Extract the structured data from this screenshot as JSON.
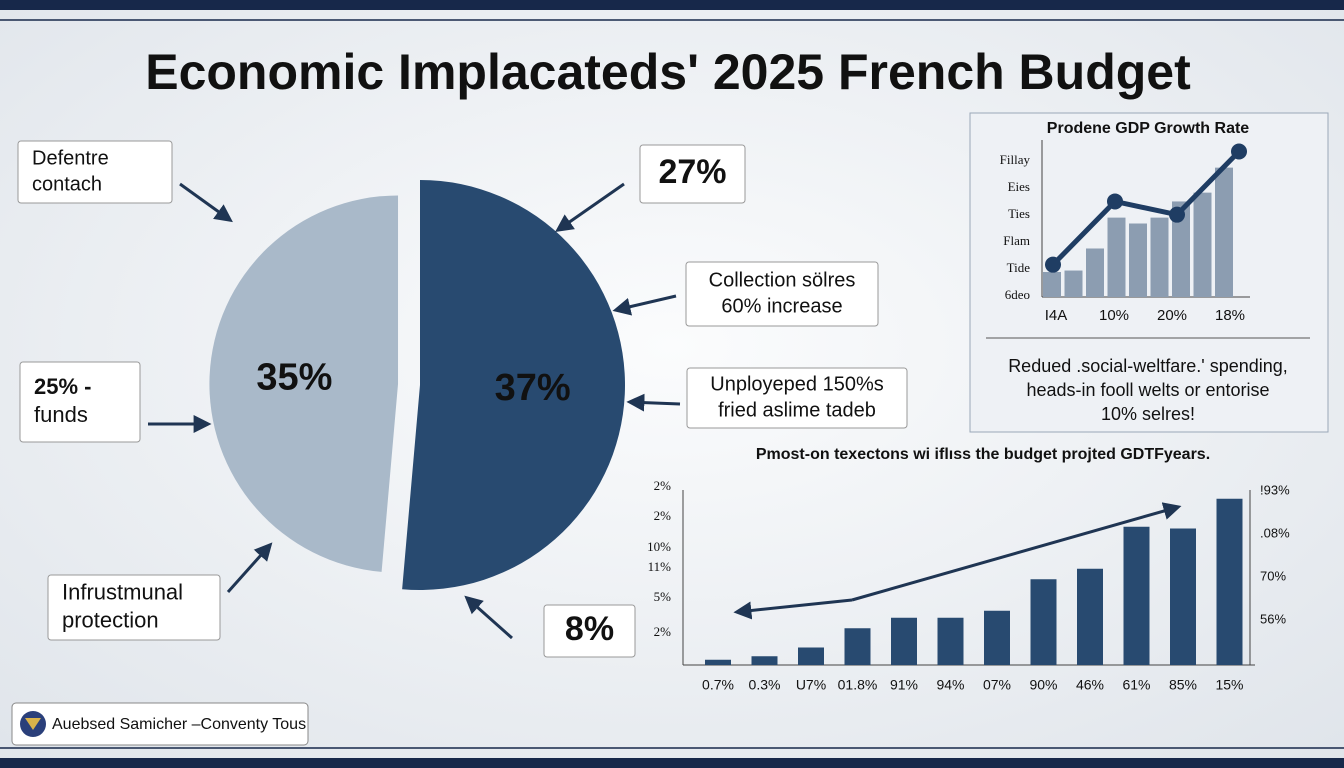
{
  "title": "Economic Implacateds' 2025 French Budget",
  "callouts": [
    {
      "text": [
        "Defentre",
        "contach"
      ]
    },
    {
      "text": [
        "27%"
      ]
    },
    {
      "text": [
        "Collection sölres",
        "60% increase"
      ]
    },
    {
      "text": [
        "Unployeped 150%s",
        "fried aslime tadeb"
      ]
    },
    {
      "text": [
        "25% -",
        "funds"
      ]
    },
    {
      "text": [
        "Infrustmunal",
        "protection"
      ]
    },
    {
      "text": [
        "8%"
      ]
    }
  ],
  "note": [
    "Redued .social-weltfare.' spending,",
    "heads-in fooll welts or entorise",
    "10% selres!"
  ],
  "footer": "Auebsed Samicher –Conventy Tous",
  "chart_data": [
    {
      "type": "pie",
      "values": [
        37,
        35
      ],
      "value_labels": [
        "37%",
        "35%"
      ],
      "colors": [
        "#284a70",
        "#a9b9c9"
      ]
    },
    {
      "type": "combo",
      "title": "Prodene GDP Growth Rate",
      "y_labels": [
        "Fillay",
        "Eies",
        "Ties",
        "Flam",
        "Tide",
        "6deo"
      ],
      "x_labels": [
        "I4A",
        "10%",
        "20%",
        "18%"
      ],
      "ylim": [
        0,
        100
      ],
      "series": [
        {
          "kind": "bar",
          "color": "#8c9db1",
          "values": [
            17,
            18,
            33,
            54,
            50,
            54,
            65,
            71,
            88
          ]
        },
        {
          "kind": "line",
          "color": "#1f3d63",
          "values": [
            22,
            65,
            56,
            99
          ]
        }
      ]
    },
    {
      "type": "bar",
      "title": "Pmost-on texectons wi iflıss the budget projted GDTFyears.",
      "y_labels": [
        "2%",
        "2%",
        "10%",
        "11%",
        "5%",
        "2%"
      ],
      "y2_labels": [
        "!93%",
        ".08%",
        "70%",
        "56%"
      ],
      "categories": [
        "0.7%",
        "0.3%",
        "U7%",
        "01.8%",
        "91%",
        "94%",
        "07%",
        "90%",
        "46%",
        "61%",
        "85%",
        "15%"
      ],
      "values": [
        3,
        5,
        10,
        21,
        27,
        27,
        31,
        49,
        55,
        79,
        78,
        95
      ],
      "color": "#284a70",
      "ylim": [
        0,
        100
      ]
    }
  ]
}
